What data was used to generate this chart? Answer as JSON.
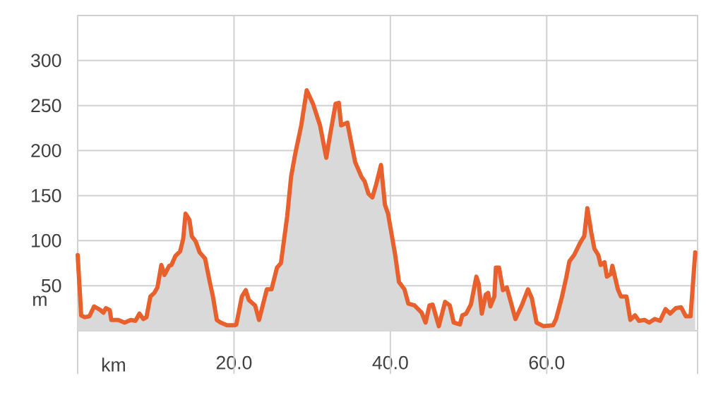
{
  "chart_data": {
    "type": "area",
    "xlabel": "km",
    "ylabel": "m",
    "x": [
      0,
      0.45,
      0.9,
      1.5,
      2.1,
      2.9,
      3.3,
      3.6,
      4.1,
      4.3,
      5.2,
      6.0,
      6.8,
      7.4,
      7.9,
      8.4,
      8.8,
      9.3,
      9.8,
      10.2,
      10.7,
      11.1,
      11.7,
      12.0,
      12.5,
      13.1,
      13.5,
      13.8,
      14.3,
      14.6,
      15.1,
      15.6,
      16.3,
      16.9,
      17.3,
      17.8,
      18.3,
      19.1,
      20.1,
      20.3,
      21.0,
      21.5,
      21.9,
      22.7,
      23.2,
      24.2,
      24.8,
      25.5,
      26.0,
      26.8,
      27.3,
      27.8,
      28.6,
      29.3,
      30.1,
      31.0,
      31.8,
      32.3,
      33.0,
      33.4,
      33.7,
      34.5,
      34.9,
      35.5,
      36.3,
      36.7,
      37.2,
      37.7,
      38.2,
      38.8,
      39.3,
      39.7,
      40.6,
      41.1,
      41.8,
      42.3,
      43.1,
      44.0,
      44.5,
      45.0,
      45.4,
      46.2,
      47.0,
      47.6,
      48.1,
      48.9,
      49.2,
      49.7,
      50.3,
      51.0,
      51.3,
      51.7,
      52.2,
      52.5,
      52.8,
      53.3,
      53.5,
      53.9,
      54.4,
      54.9,
      56.0,
      56.9,
      57.6,
      58.1,
      58.7,
      59.6,
      60.8,
      61.2,
      61.9,
      62.5,
      62.9,
      63.5,
      64.3,
      64.8,
      65.2,
      65.7,
      66.1,
      66.6,
      66.9,
      67.4,
      67.7,
      68.2,
      68.4,
      69.1,
      69.5,
      70.2,
      70.7,
      71.3,
      71.8,
      72.5,
      73.1,
      73.8,
      74.5,
      75.2,
      75.8,
      76.5,
      77.2,
      77.8,
      78.4,
      79.0
    ],
    "series": [
      {
        "color": "#e8602c",
        "values": [
          84,
          17,
          15,
          16,
          27,
          23,
          20,
          25,
          23,
          12,
          12,
          9,
          12,
          11,
          19,
          13,
          15,
          38,
          42,
          48,
          73,
          62,
          72,
          73,
          83,
          88,
          102,
          130,
          123,
          105,
          99,
          87,
          80,
          54,
          38,
          12,
          9,
          6,
          6,
          7,
          38,
          45,
          34,
          28,
          12,
          46,
          46,
          70,
          75,
          127,
          171,
          195,
          228,
          267,
          252,
          228,
          192,
          218,
          252,
          253,
          228,
          231,
          213,
          187,
          171,
          166,
          152,
          148,
          163,
          184,
          140,
          130,
          85,
          54,
          46,
          30,
          28,
          20,
          9,
          28,
          29,
          5,
          32,
          28,
          9,
          7,
          17,
          19,
          29,
          60,
          52,
          19,
          40,
          42,
          27,
          38,
          70,
          70,
          45,
          48,
          13,
          30,
          46,
          36,
          9,
          5,
          6,
          13,
          36,
          59,
          77,
          84,
          98,
          105,
          136,
          109,
          91,
          84,
          73,
          76,
          60,
          63,
          72,
          46,
          38,
          38,
          12,
          17,
          11,
          12,
          9,
          13,
          11,
          24,
          19,
          25,
          26,
          16,
          16,
          87
        ]
      }
    ],
    "xlim": [
      0,
      79.3
    ],
    "ylim": [
      0,
      350
    ],
    "xticks": [
      {
        "value": 0,
        "label": null
      },
      {
        "value": 20,
        "label": "20.0"
      },
      {
        "value": 40,
        "label": "40.0"
      },
      {
        "value": 60,
        "label": "60.0"
      }
    ],
    "yticks": [
      {
        "value": 0,
        "label": null
      },
      50,
      100,
      150,
      200,
      250,
      300,
      {
        "value": 350,
        "label": null
      }
    ],
    "grid": true,
    "marker": "none",
    "line_style": "solid"
  }
}
